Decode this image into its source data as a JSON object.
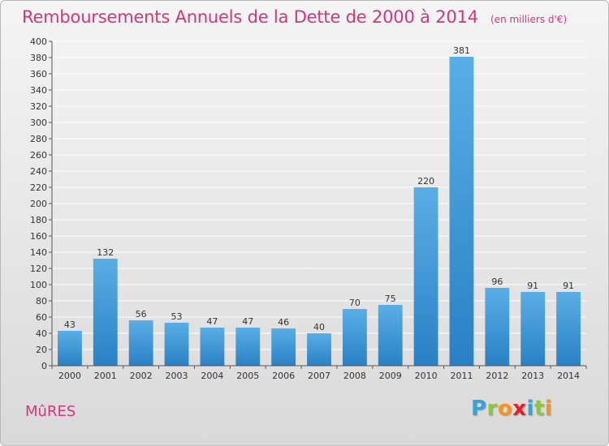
{
  "header": {
    "title": "Remboursements Annuels de la Dette de 2000 à 2014",
    "unit": "(en milliers d'€)"
  },
  "footer": {
    "place": "MûRES",
    "brand": "Proxiti",
    "brand_letters": [
      {
        "char": "P",
        "color": "#3aa0d8"
      },
      {
        "char": "r",
        "color": "#8cc63f"
      },
      {
        "char": "o",
        "color": "#f7941d"
      },
      {
        "char": "x",
        "color": "#ed1c24"
      },
      {
        "char": "i",
        "color": "#3aa0d8"
      },
      {
        "char": "t",
        "color": "#8cc63f"
      },
      {
        "char": "i",
        "color": "#f7941d"
      }
    ]
  },
  "colors": {
    "bar_top": "#5aaee6",
    "bar_bottom": "#2a80c4",
    "title": "#d4367c",
    "grid": "#ffffff",
    "text": "#333333"
  },
  "chart_data": {
    "type": "bar",
    "categories": [
      "2000",
      "2001",
      "2002",
      "2003",
      "2004",
      "2005",
      "2006",
      "2007",
      "2008",
      "2009",
      "2010",
      "2011",
      "2012",
      "2013",
      "2014"
    ],
    "values": [
      43,
      132,
      56,
      53,
      47,
      47,
      46,
      40,
      70,
      75,
      220,
      381,
      96,
      91,
      91
    ],
    "ylim": [
      0,
      400
    ],
    "ytick_step": 20,
    "grid": true,
    "data_labels": true
  }
}
